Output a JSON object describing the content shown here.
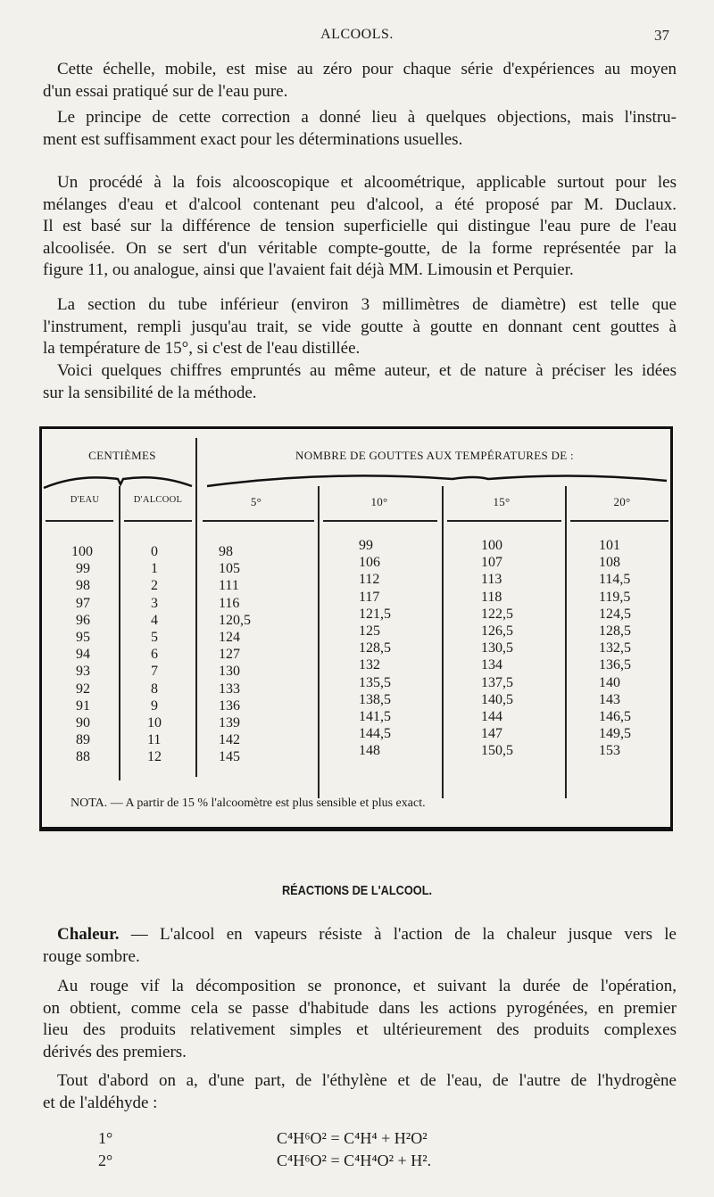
{
  "header": {
    "running_title": "ALCOOLS.",
    "page_number": "37"
  },
  "paragraphs_top": [
    {
      "lines": [
        "Cette échelle, mobile, est mise au zéro pour chaque série d'expériences au moyen",
        "d'un essai pratiqué sur de l'eau pure."
      ]
    },
    {
      "lines": [
        "Le principe de cette correction a donné lieu à quelques objections, mais l'instru-",
        "ment est suffisamment exact pour les déterminations usuelles."
      ]
    },
    {
      "lines": [
        "Un procédé à la fois alcooscopique et alcoométrique, applicable surtout pour les",
        "mélanges d'eau et d'alcool contenant peu d'alcool, a été proposé par M. Duclaux.",
        "Il est basé sur la différence de tension superficielle qui distingue l'eau pure de l'eau",
        "alcoolisée. On se sert d'un véritable compte-goutte, de la forme représentée par la",
        "figure 11, ou analogue, ainsi que l'avaient fait déjà MM. Limousin et Perquier."
      ]
    },
    {
      "lines": [
        "La section du tube inférieur (environ 3 millimètres de diamètre) est telle que",
        "l'instrument, rempli jusqu'au trait, se vide goutte à goutte en donnant cent gouttes à",
        "la température de 15°, si c'est de l'eau distillée."
      ]
    },
    {
      "lines": [
        "Voici quelques chiffres empruntés au même auteur, et de nature à préciser les idées",
        "sur la sensibilité de la méthode."
      ]
    }
  ],
  "table": {
    "group_header_left": "CENTIÈMES",
    "group_header_right": "NOMBRE DE GOUTTES AUX TEMPÉRATURES DE :",
    "columns": [
      "D'EAU",
      "D'ALCOOL",
      "5°",
      "10°",
      "15°",
      "20°"
    ],
    "rows": [
      [
        "100",
        "0",
        "98",
        "99",
        "100",
        "101"
      ],
      [
        "99",
        "1",
        "105",
        "106",
        "107",
        "108"
      ],
      [
        "98",
        "2",
        "111",
        "112",
        "113",
        "114,5"
      ],
      [
        "97",
        "3",
        "116",
        "117",
        "118",
        "119,5"
      ],
      [
        "96",
        "4",
        "120,5",
        "121,5",
        "122,5",
        "124,5"
      ],
      [
        "95",
        "5",
        "124",
        "125",
        "126,5",
        "128,5"
      ],
      [
        "94",
        "6",
        "127",
        "128,5",
        "130,5",
        "132,5"
      ],
      [
        "93",
        "7",
        "130",
        "132",
        "134",
        "136,5"
      ],
      [
        "92",
        "8",
        "133",
        "135,5",
        "137,5",
        "140"
      ],
      [
        "91",
        "9",
        "136",
        "138,5",
        "140,5",
        "143"
      ],
      [
        "90",
        "10",
        "139",
        "141,5",
        "144",
        "146,5"
      ],
      [
        "89",
        "11",
        "142",
        "144,5",
        "147",
        "149,5"
      ],
      [
        "88",
        "12",
        "145",
        "148",
        "150,5",
        "153"
      ]
    ],
    "note": "NOTA. — A partir de 15 % l'alcoomètre est plus sensible et plus exact."
  },
  "section_heading": "RÉACTIONS DE L'ALCOOL.",
  "paragraphs_bottom": [
    {
      "runin": "Chaleur.",
      "lines": [
        " — L'alcool en vapeurs résiste à l'action de la chaleur jusque vers le",
        "rouge sombre."
      ]
    },
    {
      "lines": [
        "Au rouge vif la décomposition se prononce, et suivant la durée de l'opération,",
        "on obtient, comme cela se passe d'habitude dans les actions pyrogénées, en premier",
        "lieu des produits relativement simples et ultérieurement des produits complexes",
        "dérivés des premiers."
      ]
    },
    {
      "lines": [
        "Tout d'abord on a, d'une part, de l'éthylène et de l'eau, de l'autre de l'hydrogène",
        "et de l'aldéhyde :"
      ]
    }
  ],
  "formulas": [
    {
      "number": "1°",
      "equation": "C⁴H⁶O² = C⁴H⁴ + H²O²"
    },
    {
      "number": "2°",
      "equation": "C⁴H⁶O² = C⁴H⁴O² + H²."
    }
  ]
}
